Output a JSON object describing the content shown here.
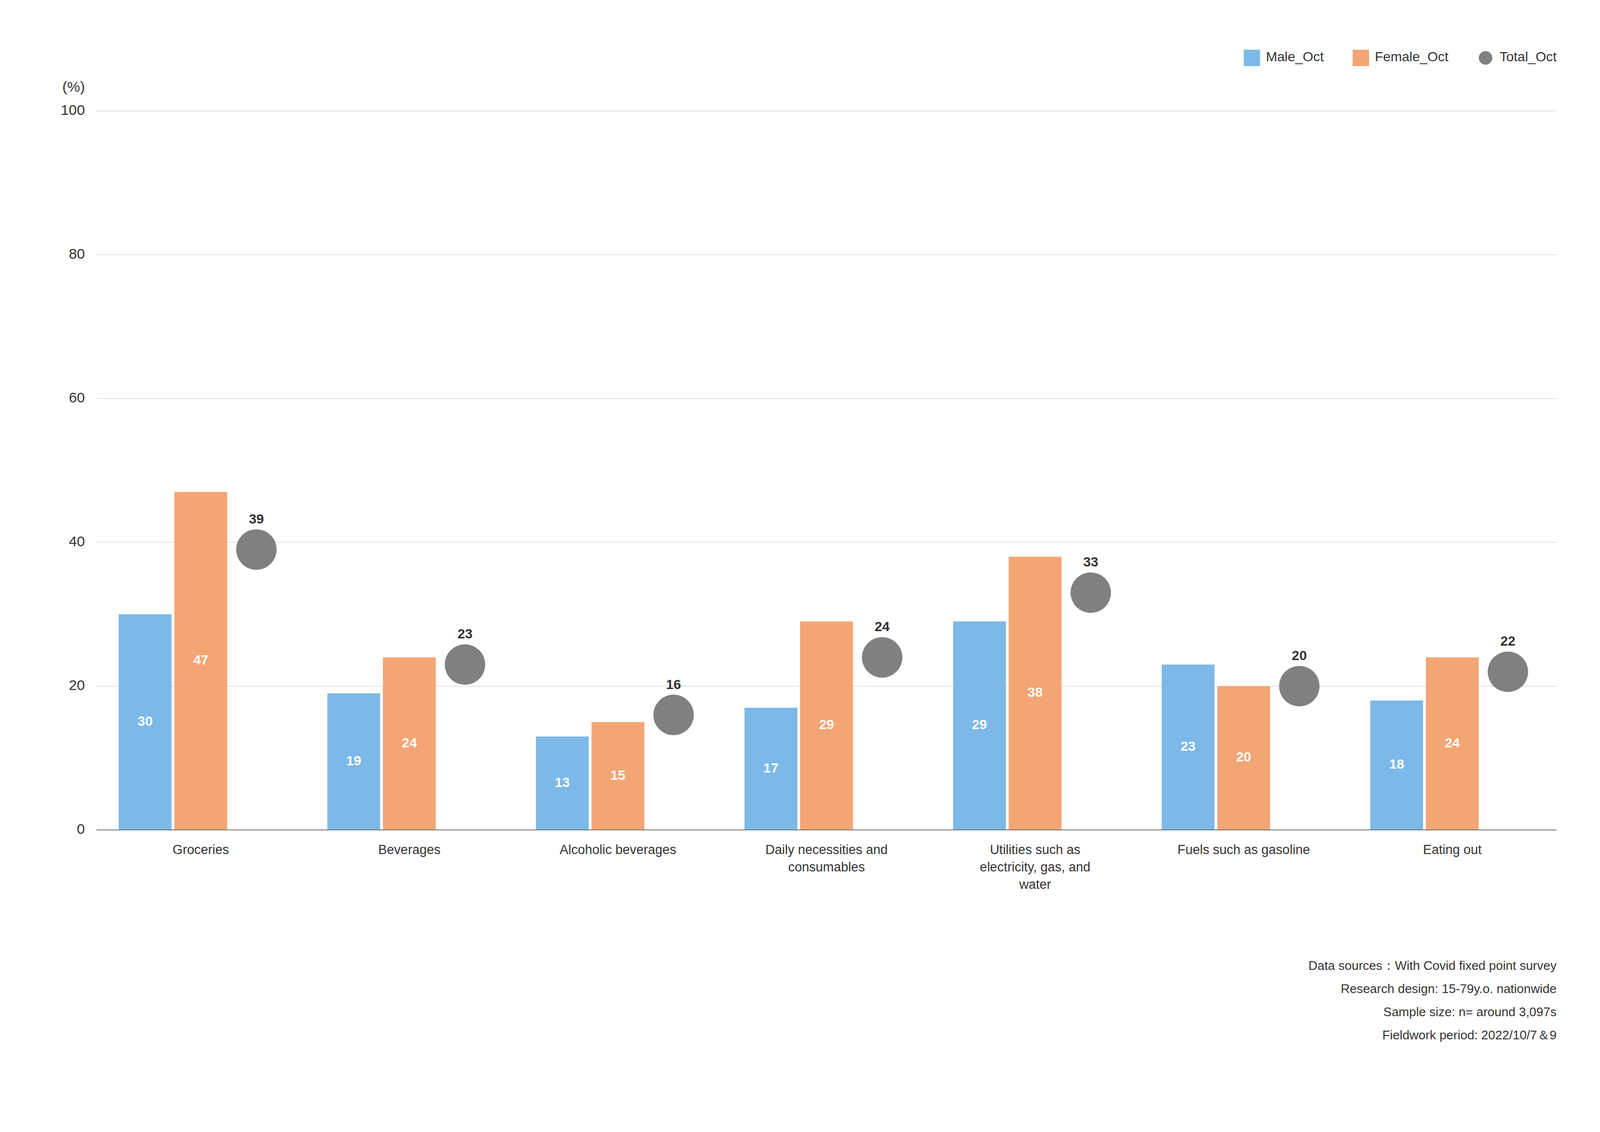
{
  "chart_data": {
    "type": "bar",
    "categories": [
      "Groceries",
      "Beverages",
      "Alcoholic beverages",
      "Daily necessities and\nconsumables",
      "Utilities such as\nelectricity, gas, and\nwater",
      "Fuels such as gasoline",
      "Eating out"
    ],
    "series": [
      {
        "name": "Male_Oct",
        "color": "#7cb9e8",
        "values": [
          30,
          19,
          13,
          17,
          29,
          23,
          18
        ]
      },
      {
        "name": "Female_Oct",
        "color": "#f4a574",
        "values": [
          47,
          24,
          15,
          29,
          38,
          20,
          24
        ]
      },
      {
        "name": "Total_Oct",
        "color": "#808080",
        "type": "scatter",
        "marker": "circle",
        "values": [
          39,
          23,
          16,
          24,
          33,
          20,
          22
        ]
      }
    ],
    "ylabel": "(%)",
    "ylim": [
      0,
      100
    ],
    "yticks": [
      0,
      20,
      40,
      60,
      80,
      100
    ],
    "grid": true,
    "legend": "upper right",
    "data_labels": true,
    "annotations": [
      "Data sources：With Covid fixed point survey",
      "Research design: 15-79y.o. nationwide",
      "Sample size: n= around 3,097s",
      "Fieldwork period: 2022/10/7＆9"
    ]
  }
}
